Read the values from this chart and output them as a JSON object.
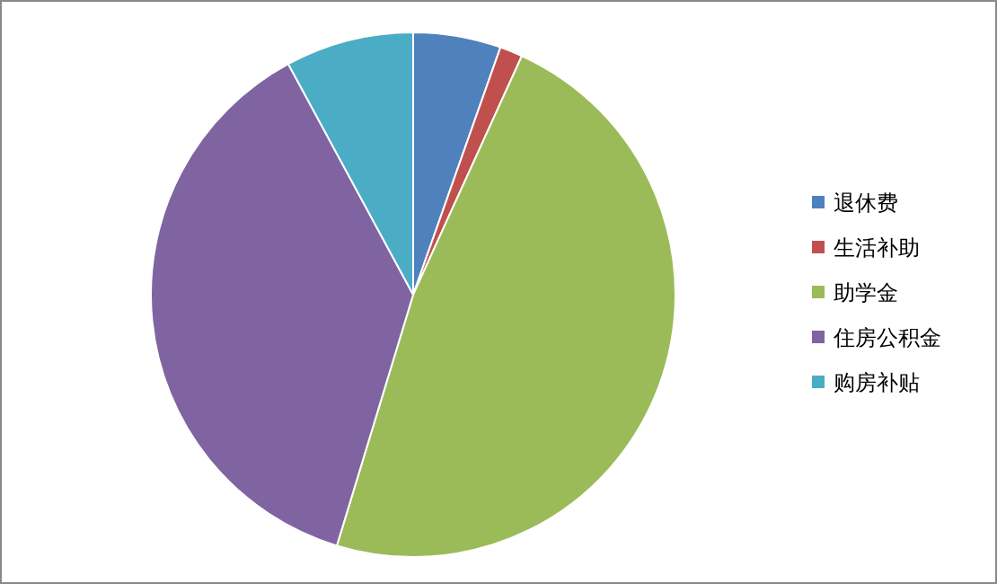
{
  "chart_data": {
    "type": "pie",
    "categories": [
      "退休费",
      "生活补助",
      "助学金",
      "住房公积金",
      "购房补贴"
    ],
    "values": [
      5.4,
      1.4,
      47.9,
      37.4,
      7.9
    ],
    "colors": [
      "#4f81bd",
      "#c0504d",
      "#9bbb59",
      "#8064a2",
      "#4bacc6"
    ],
    "legend": "right"
  }
}
